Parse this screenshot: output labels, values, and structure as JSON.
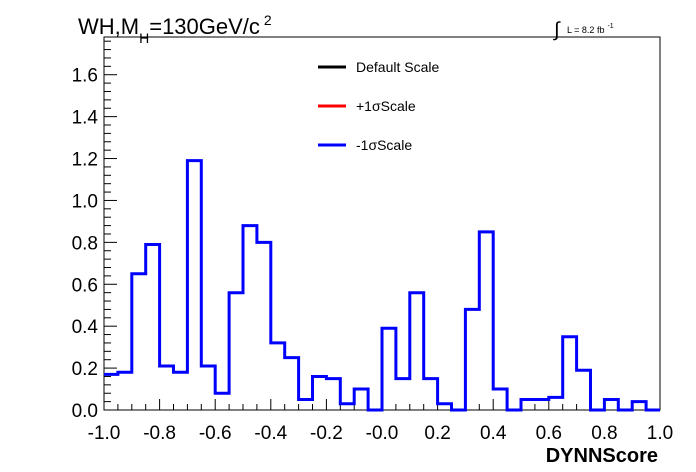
{
  "chart_data": {
    "type": "histogram",
    "title_main": "WH,M",
    "title_sub": "H",
    "title_rest": "=130GeV/c",
    "title_sup": "2",
    "lumi_integral": "∫",
    "lumi_text": "L = 8.2 fb",
    "lumi_sup": "-1",
    "xlabel": "DYNNScore",
    "ylabel": "",
    "xlim": [
      -1.0,
      1.0
    ],
    "ylim": [
      0.0,
      1.78
    ],
    "x_ticks": [
      "-1.0",
      "-0.8",
      "-0.6",
      "-0.4",
      "-0.2",
      "-0.0",
      "0.2",
      "0.4",
      "0.6",
      "0.8",
      "1.0"
    ],
    "y_ticks": [
      "0.0",
      "0.2",
      "0.4",
      "0.6",
      "0.8",
      "1.0",
      "1.2",
      "1.4",
      "1.6"
    ],
    "legend": {
      "position": "top-center",
      "entries": [
        {
          "label": "Default Scale",
          "color": "#000000"
        },
        {
          "label": "+1σScale",
          "color": "#ff0000"
        },
        {
          "label": "-1σScale",
          "color": "#0000ff"
        }
      ]
    },
    "bin_edges": [
      -1.0,
      -0.95,
      -0.9,
      -0.85,
      -0.8,
      -0.75,
      -0.7,
      -0.65,
      -0.6,
      -0.55,
      -0.5,
      -0.45,
      -0.4,
      -0.35,
      -0.3,
      -0.25,
      -0.2,
      -0.15,
      -0.1,
      -0.05,
      0.0,
      0.05,
      0.1,
      0.15,
      0.2,
      0.25,
      0.3,
      0.35,
      0.4,
      0.45,
      0.5,
      0.55,
      0.6,
      0.65,
      0.7,
      0.75,
      0.8,
      0.85,
      0.9,
      0.95,
      1.0
    ],
    "series": [
      {
        "name": "-1σScale",
        "color": "#0000ff",
        "values": [
          0.17,
          0.18,
          0.65,
          0.79,
          0.21,
          0.18,
          1.19,
          0.21,
          0.08,
          0.56,
          0.88,
          0.8,
          0.32,
          0.25,
          0.05,
          0.16,
          0.15,
          0.03,
          0.1,
          0.0,
          0.39,
          0.15,
          0.56,
          0.15,
          0.03,
          0.0,
          0.48,
          0.85,
          0.1,
          0.0,
          0.05,
          0.05,
          0.06,
          0.35,
          0.19,
          0.0,
          0.05,
          0.0,
          0.04,
          0.0
        ]
      }
    ]
  }
}
